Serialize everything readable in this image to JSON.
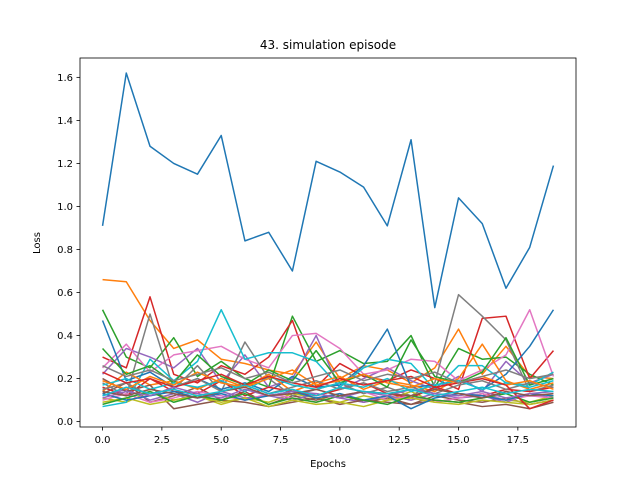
{
  "chart_data": {
    "type": "line",
    "title": "43. simulation episode",
    "xlabel": "Epochs",
    "ylabel": "Loss",
    "xlim": [
      -0.95,
      19.95
    ],
    "ylim": [
      -0.025,
      1.69
    ],
    "xticks": [
      0.0,
      2.5,
      5.0,
      7.5,
      10.0,
      12.5,
      15.0,
      17.5
    ],
    "xtick_labels": [
      "0.0",
      "2.5",
      "5.0",
      "7.5",
      "10.0",
      "12.5",
      "15.0",
      "17.5"
    ],
    "yticks": [
      0.0,
      0.2,
      0.4,
      0.6,
      0.8,
      1.0,
      1.2,
      1.4,
      1.6
    ],
    "ytick_labels": [
      "0.0",
      "0.2",
      "0.4",
      "0.6",
      "0.8",
      "1.0",
      "1.2",
      "1.4",
      "1.6"
    ],
    "grid": false,
    "x": [
      0,
      1,
      2,
      3,
      4,
      5,
      6,
      7,
      8,
      9,
      10,
      11,
      12,
      13,
      14,
      15,
      16,
      17,
      18,
      19
    ],
    "series": [
      {
        "color": "#1f77b4",
        "values": [
          0.91,
          1.62,
          1.28,
          1.2,
          1.15,
          1.33,
          0.84,
          0.88,
          0.7,
          1.21,
          1.16,
          1.09,
          0.91,
          1.31,
          0.53,
          1.04,
          0.92,
          0.62,
          0.81,
          1.19
        ]
      },
      {
        "color": "#ff7f0e",
        "values": [
          0.66,
          0.65,
          0.47,
          0.34,
          0.38,
          0.29,
          0.27,
          0.24,
          0.22,
          0.37,
          0.2,
          0.26,
          0.24,
          0.18,
          0.25,
          0.43,
          0.22,
          0.35,
          0.21,
          0.2
        ]
      },
      {
        "color": "#2ca02c",
        "values": [
          0.52,
          0.3,
          0.25,
          0.39,
          0.21,
          0.28,
          0.2,
          0.16,
          0.49,
          0.28,
          0.33,
          0.27,
          0.28,
          0.4,
          0.16,
          0.34,
          0.29,
          0.3,
          0.22,
          0.17
        ]
      },
      {
        "color": "#d62728",
        "values": [
          0.3,
          0.25,
          0.58,
          0.22,
          0.18,
          0.26,
          0.22,
          0.3,
          0.47,
          0.16,
          0.27,
          0.21,
          0.19,
          0.24,
          0.2,
          0.15,
          0.48,
          0.49,
          0.2,
          0.33
        ]
      },
      {
        "color": "#9467bd",
        "values": [
          0.22,
          0.34,
          0.3,
          0.25,
          0.34,
          0.18,
          0.31,
          0.16,
          0.2,
          0.4,
          0.15,
          0.2,
          0.25,
          0.19,
          0.15,
          0.21,
          0.14,
          0.28,
          0.18,
          0.22
        ]
      },
      {
        "color": "#8c564b",
        "values": [
          0.13,
          0.18,
          0.09,
          0.12,
          0.16,
          0.1,
          0.14,
          0.08,
          0.12,
          0.1,
          0.13,
          0.09,
          0.11,
          0.08,
          0.12,
          0.1,
          0.09,
          0.11,
          0.08,
          0.1
        ]
      },
      {
        "color": "#e377c2",
        "values": [
          0.25,
          0.36,
          0.23,
          0.31,
          0.33,
          0.35,
          0.29,
          0.25,
          0.4,
          0.41,
          0.34,
          0.22,
          0.24,
          0.29,
          0.28,
          0.19,
          0.24,
          0.31,
          0.52,
          0.21
        ]
      },
      {
        "color": "#7f7f7f",
        "values": [
          0.18,
          0.12,
          0.5,
          0.15,
          0.26,
          0.14,
          0.37,
          0.2,
          0.12,
          0.15,
          0.18,
          0.13,
          0.16,
          0.12,
          0.18,
          0.59,
          0.49,
          0.38,
          0.14,
          0.17
        ]
      },
      {
        "color": "#bcbd22",
        "values": [
          0.11,
          0.09,
          0.14,
          0.1,
          0.12,
          0.08,
          0.11,
          0.09,
          0.13,
          0.11,
          0.09,
          0.12,
          0.1,
          0.14,
          0.09,
          0.11,
          0.13,
          0.1,
          0.09,
          0.12
        ]
      },
      {
        "color": "#17becf",
        "values": [
          0.07,
          0.09,
          0.29,
          0.19,
          0.28,
          0.52,
          0.29,
          0.32,
          0.32,
          0.28,
          0.16,
          0.25,
          0.29,
          0.27,
          0.15,
          0.26,
          0.26,
          0.18,
          0.17,
          0.23
        ]
      },
      {
        "color": "#1f77b4",
        "values": [
          0.47,
          0.19,
          0.23,
          0.16,
          0.2,
          0.15,
          0.18,
          0.14,
          0.21,
          0.16,
          0.17,
          0.26,
          0.43,
          0.16,
          0.17,
          0.19,
          0.15,
          0.22,
          0.35,
          0.52
        ]
      },
      {
        "color": "#ff7f0e",
        "values": [
          0.14,
          0.23,
          0.17,
          0.19,
          0.15,
          0.2,
          0.16,
          0.22,
          0.14,
          0.18,
          0.21,
          0.15,
          0.19,
          0.17,
          0.14,
          0.2,
          0.36,
          0.19,
          0.15,
          0.18
        ]
      },
      {
        "color": "#2ca02c",
        "values": [
          0.34,
          0.22,
          0.26,
          0.18,
          0.31,
          0.21,
          0.17,
          0.24,
          0.19,
          0.33,
          0.18,
          0.22,
          0.16,
          0.38,
          0.21,
          0.18,
          0.23,
          0.39,
          0.17,
          0.2
        ]
      },
      {
        "color": "#d62728",
        "values": [
          0.16,
          0.12,
          0.2,
          0.14,
          0.13,
          0.19,
          0.12,
          0.16,
          0.14,
          0.12,
          0.15,
          0.18,
          0.13,
          0.11,
          0.16,
          0.13,
          0.12,
          0.15,
          0.14,
          0.16
        ]
      },
      {
        "color": "#9467bd",
        "values": [
          0.12,
          0.15,
          0.1,
          0.13,
          0.09,
          0.14,
          0.11,
          0.12,
          0.1,
          0.13,
          0.11,
          0.09,
          0.12,
          0.1,
          0.13,
          0.11,
          0.12,
          0.09,
          0.13,
          0.11
        ]
      },
      {
        "color": "#8c564b",
        "values": [
          0.2,
          0.14,
          0.17,
          0.06,
          0.08,
          0.1,
          0.09,
          0.07,
          0.09,
          0.11,
          0.08,
          0.1,
          0.09,
          0.08,
          0.1,
          0.09,
          0.07,
          0.08,
          0.06,
          0.09
        ]
      },
      {
        "color": "#e377c2",
        "values": [
          0.1,
          0.13,
          0.09,
          0.11,
          0.14,
          0.12,
          0.1,
          0.13,
          0.11,
          0.09,
          0.12,
          0.14,
          0.1,
          0.12,
          0.09,
          0.11,
          0.13,
          0.1,
          0.12,
          0.11
        ]
      },
      {
        "color": "#7f7f7f",
        "values": [
          0.15,
          0.18,
          0.12,
          0.16,
          0.2,
          0.14,
          0.17,
          0.13,
          0.16,
          0.19,
          0.15,
          0.18,
          0.14,
          0.16,
          0.13,
          0.17,
          0.19,
          0.15,
          0.18,
          0.16
        ]
      },
      {
        "color": "#bcbd22",
        "values": [
          0.09,
          0.11,
          0.08,
          0.1,
          0.12,
          0.09,
          0.11,
          0.07,
          0.1,
          0.08,
          0.09,
          0.07,
          0.1,
          0.11,
          0.09,
          0.08,
          0.1,
          0.09,
          0.08,
          0.1
        ]
      },
      {
        "color": "#17becf",
        "values": [
          0.17,
          0.2,
          0.15,
          0.18,
          0.16,
          0.19,
          0.14,
          0.21,
          0.17,
          0.15,
          0.18,
          0.16,
          0.2,
          0.14,
          0.17,
          0.19,
          0.15,
          0.18,
          0.16,
          0.19
        ]
      },
      {
        "color": "#1f77b4",
        "values": [
          0.13,
          0.1,
          0.12,
          0.14,
          0.11,
          0.13,
          0.1,
          0.12,
          0.14,
          0.11,
          0.13,
          0.1,
          0.12,
          0.06,
          0.11,
          0.13,
          0.12,
          0.1,
          0.13,
          0.12
        ]
      },
      {
        "color": "#ff7f0e",
        "values": [
          0.19,
          0.15,
          0.21,
          0.17,
          0.23,
          0.18,
          0.16,
          0.2,
          0.24,
          0.17,
          0.19,
          0.22,
          0.18,
          0.16,
          0.2,
          0.18,
          0.21,
          0.17,
          0.19,
          0.15
        ]
      },
      {
        "color": "#2ca02c",
        "values": [
          0.08,
          0.11,
          0.14,
          0.09,
          0.12,
          0.1,
          0.13,
          0.08,
          0.11,
          0.09,
          0.12,
          0.1,
          0.08,
          0.12,
          0.1,
          0.09,
          0.11,
          0.13,
          0.09,
          0.11
        ]
      },
      {
        "color": "#d62728",
        "values": [
          0.23,
          0.18,
          0.2,
          0.16,
          0.19,
          0.22,
          0.17,
          0.21,
          0.18,
          0.16,
          0.2,
          0.17,
          0.19,
          0.21,
          0.16,
          0.18,
          0.2,
          0.17,
          0.06,
          0.1
        ]
      },
      {
        "color": "#9467bd",
        "values": [
          0.11,
          0.14,
          0.12,
          0.16,
          0.13,
          0.11,
          0.15,
          0.12,
          0.14,
          0.13,
          0.11,
          0.14,
          0.12,
          0.15,
          0.13,
          0.12,
          0.14,
          0.11,
          0.13,
          0.14
        ]
      },
      {
        "color": "#8c564b",
        "values": [
          0.14,
          0.12,
          0.15,
          0.13,
          0.11,
          0.14,
          0.16,
          0.12,
          0.13,
          0.15,
          0.12,
          0.14,
          0.13,
          0.12,
          0.15,
          0.13,
          0.11,
          0.14,
          0.12,
          0.13
        ]
      },
      {
        "color": "#7f7f7f",
        "values": [
          0.26,
          0.21,
          0.24,
          0.19,
          0.22,
          0.25,
          0.2,
          0.23,
          0.18,
          0.21,
          0.24,
          0.19,
          0.22,
          0.2,
          0.23,
          0.18,
          0.21,
          0.24,
          0.2,
          0.22
        ]
      },
      {
        "color": "#17becf",
        "values": [
          0.12,
          0.16,
          0.13,
          0.15,
          0.12,
          0.14,
          0.17,
          0.13,
          0.15,
          0.12,
          0.16,
          0.14,
          0.13,
          0.15,
          0.12,
          0.14,
          0.16,
          0.13,
          0.15,
          0.14
        ]
      }
    ]
  }
}
